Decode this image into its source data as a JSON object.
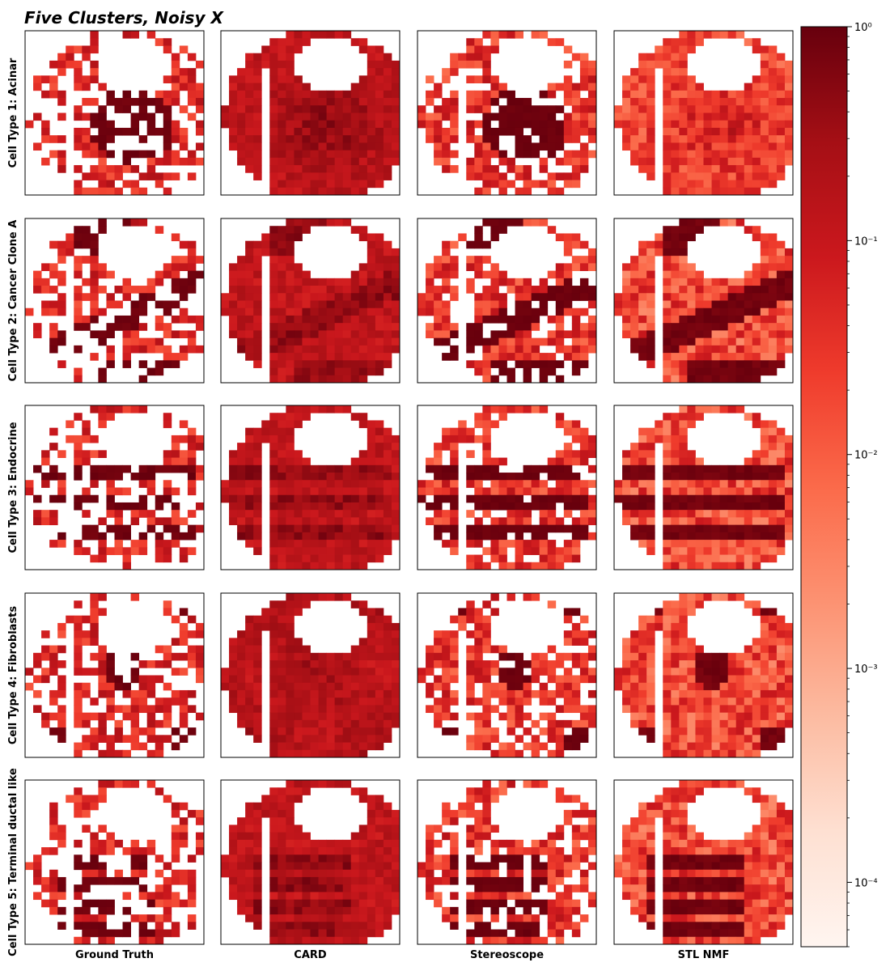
{
  "title": "Five Clusters, Noisy X",
  "chart_data": {
    "type": "heatmap",
    "title": "Five Clusters, Noisy X",
    "rows": [
      "Cell Type 1: Acinar",
      "Cell Type 2: Cancer Clone A",
      "Cell Type 3: Endocrine",
      "Cell Type 4: Fibroblasts",
      "Cell Type 5: Terminal ductal like"
    ],
    "columns": [
      "Ground Truth",
      "CARD",
      "Stereoscope",
      "STL NMF"
    ],
    "colormap": "Reds",
    "colormap_stops": [
      "#fff5f0",
      "#fee0d2",
      "#fcbba1",
      "#fc9272",
      "#fb6a4a",
      "#ef3b2c",
      "#cb181d",
      "#a50f15",
      "#67000d"
    ],
    "colorbar": {
      "scale": "log",
      "range": [
        5e-05,
        1
      ],
      "ticks": [
        0.0001,
        0.001,
        0.01,
        0.1,
        1
      ],
      "tick_labels": [
        "10⁻⁴",
        "10⁻³",
        "10⁻²",
        "10⁻¹",
        "10⁰"
      ]
    },
    "grid": false,
    "ticks_shown": false,
    "cell_grid_size": 22
  }
}
